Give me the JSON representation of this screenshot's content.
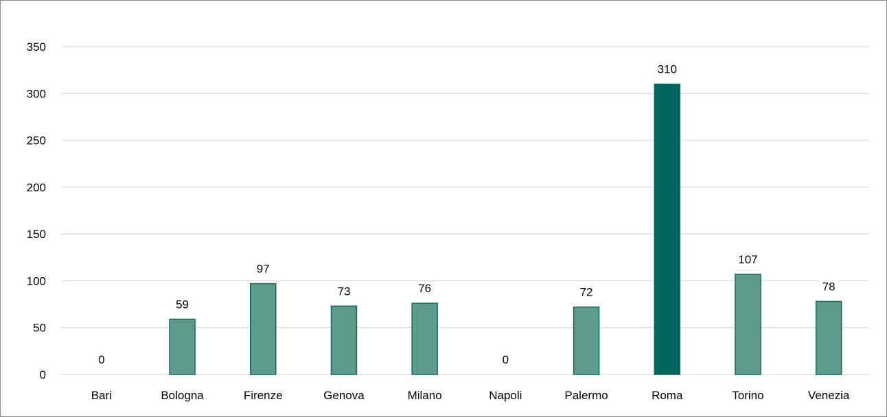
{
  "chart_data": {
    "type": "bar",
    "categories": [
      "Bari",
      "Bologna",
      "Firenze",
      "Genova",
      "Milano",
      "Napoli",
      "Palermo",
      "Roma",
      "Torino",
      "Venezia"
    ],
    "values": [
      0,
      59,
      97,
      73,
      76,
      0,
      72,
      310,
      107,
      78
    ],
    "ylim": [
      0,
      350
    ],
    "yticks": [
      0,
      50,
      100,
      150,
      200,
      250,
      300,
      350
    ],
    "grid": true,
    "data_labels": true,
    "colors": {
      "bar": "#5f9b8a",
      "bar_edge": "#14695f",
      "highlight": "#02655f",
      "grid": "#d9d9d9"
    },
    "highlight_category": "Roma"
  }
}
